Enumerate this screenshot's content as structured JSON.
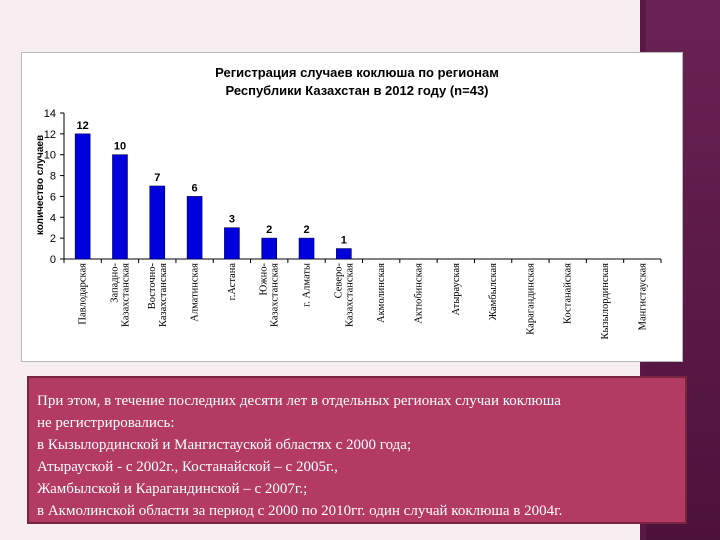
{
  "chart_data": {
    "type": "bar",
    "title_lines": [
      "Регистрация случаев коклюша по регионам",
      "Республики Казахстан в 2012 году (n=43)"
    ],
    "ylabel": "количество случаев",
    "xlabel": "",
    "ylim": [
      0,
      14
    ],
    "yticks": [
      0,
      2,
      4,
      6,
      8,
      10,
      12,
      14
    ],
    "grid": false,
    "legend": "none",
    "bar_color": "#0000dd",
    "categories": [
      [
        "Павлодарская"
      ],
      [
        "Западно-",
        "Казахстанская"
      ],
      [
        "Восточно-",
        "Казахстанская"
      ],
      [
        "Алматинская"
      ],
      [
        "г.Астана"
      ],
      [
        "Южно-",
        "Казахстанская"
      ],
      [
        "г. Алматы"
      ],
      [
        "Северо-",
        "Казахстанская"
      ],
      [
        "Акмолинская"
      ],
      [
        "Актюбинская"
      ],
      [
        "Атырауская"
      ],
      [
        "Жамбылская"
      ],
      [
        "Карагандинская"
      ],
      [
        "Костанайская"
      ],
      [
        "Кызылординская"
      ],
      [
        "Мангистауская"
      ]
    ],
    "values": [
      12,
      10,
      7,
      6,
      3,
      2,
      2,
      1,
      0,
      0,
      0,
      0,
      0,
      0,
      0,
      0
    ],
    "data_labels": [
      "12",
      "10",
      "7",
      "6",
      "3",
      "2",
      "2",
      "1",
      "",
      "",
      "",
      "",
      "",
      "",
      "",
      ""
    ]
  },
  "note": {
    "lines": [
      "При этом, в течение последних десяти лет в отдельных регионах случаи коклюша",
      "не регистрировались:",
      "в Кызылординской и Мангистауской областях с 2000 года;",
      "Атырауской - с 2002г., Костанайской – с 2005г.,",
      "Жамбылской и Карагандинской – с 2007г.;",
      "в Акмолинской области за период  с 2000 по 2010гг. один случай коклюша в 2004г."
    ]
  }
}
